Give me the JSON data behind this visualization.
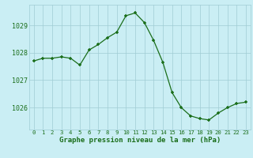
{
  "hours": [
    0,
    1,
    2,
    3,
    4,
    5,
    6,
    7,
    8,
    9,
    10,
    11,
    12,
    13,
    14,
    15,
    16,
    17,
    18,
    19,
    20,
    21,
    22,
    23
  ],
  "pressure": [
    1027.7,
    1027.8,
    1027.8,
    1027.85,
    1027.8,
    1027.55,
    1028.1,
    1028.3,
    1028.55,
    1028.75,
    1029.35,
    1029.45,
    1029.1,
    1028.45,
    1027.65,
    1026.55,
    1026.0,
    1025.7,
    1025.6,
    1025.55,
    1025.8,
    1026.0,
    1026.15,
    1026.2
  ],
  "line_color": "#1a6e1a",
  "marker_color": "#1a6e1a",
  "bg_color": "#caeef4",
  "grid_color": "#a0ccd4",
  "xlabel": "Graphe pression niveau de la mer (hPa)",
  "xlabel_color": "#1a6e1a",
  "tick_color": "#1a6e1a",
  "ylim_min": 1025.2,
  "ylim_max": 1029.75,
  "yticks": [
    1026,
    1027,
    1028,
    1029
  ],
  "xticks": [
    0,
    1,
    2,
    3,
    4,
    5,
    6,
    7,
    8,
    9,
    10,
    11,
    12,
    13,
    14,
    15,
    16,
    17,
    18,
    19,
    20,
    21,
    22,
    23
  ],
  "xtick_labels": [
    "0",
    "1",
    "2",
    "3",
    "4",
    "5",
    "6",
    "7",
    "8",
    "9",
    "10",
    "11",
    "12",
    "13",
    "14",
    "15",
    "16",
    "17",
    "18",
    "19",
    "20",
    "21",
    "22",
    "23"
  ]
}
